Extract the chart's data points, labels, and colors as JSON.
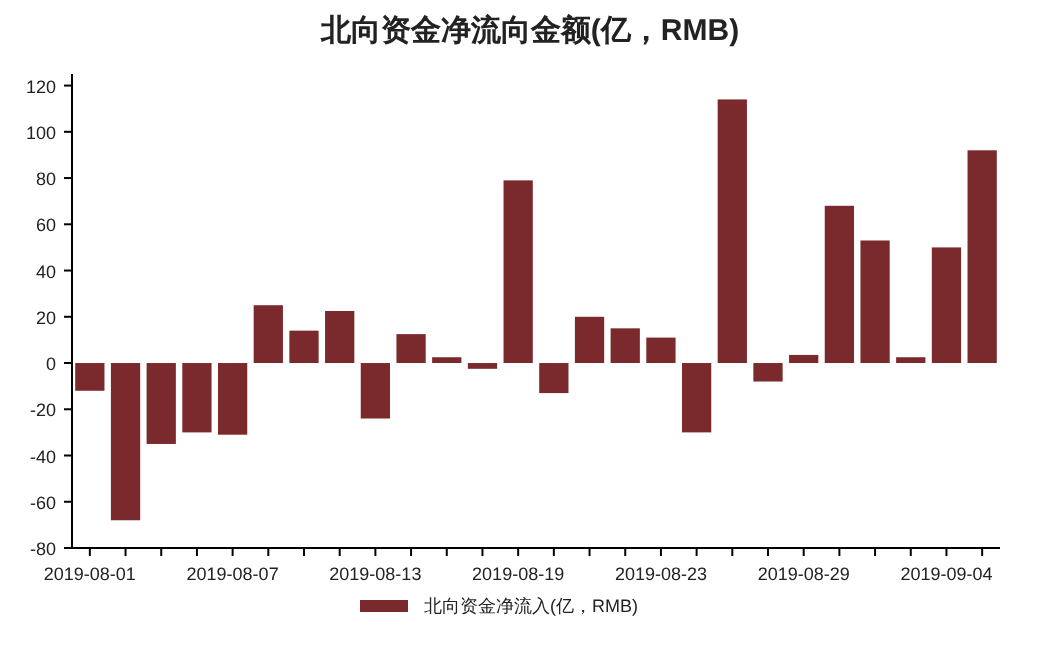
{
  "chart_data": {
    "type": "bar",
    "title": "北向资金净流向金额(亿，RMB)",
    "categories": [
      "2019-08-01",
      null,
      null,
      null,
      "2019-08-07",
      null,
      null,
      null,
      "2019-08-13",
      null,
      null,
      null,
      "2019-08-19",
      null,
      null,
      null,
      "2019-08-23",
      null,
      null,
      null,
      "2019-08-29",
      null,
      null,
      null,
      "2019-09-04",
      null
    ],
    "series": [
      {
        "name": "北向资金净流入(亿，RMB)",
        "color": "#7a2a2c",
        "values": [
          -12,
          -68,
          -35,
          -30,
          -31,
          25,
          14,
          22.5,
          -24,
          12.5,
          2.5,
          -2.5,
          79,
          -13,
          20,
          15,
          11,
          -30,
          114,
          -8,
          3.5,
          68,
          53,
          2.5,
          50,
          92
        ]
      }
    ],
    "ylim": [
      -80,
      125
    ],
    "yticks": [
      -80,
      -60,
      -40,
      -20,
      0,
      20,
      40,
      60,
      80,
      100,
      120
    ],
    "grid": false,
    "legend": "bottom"
  }
}
